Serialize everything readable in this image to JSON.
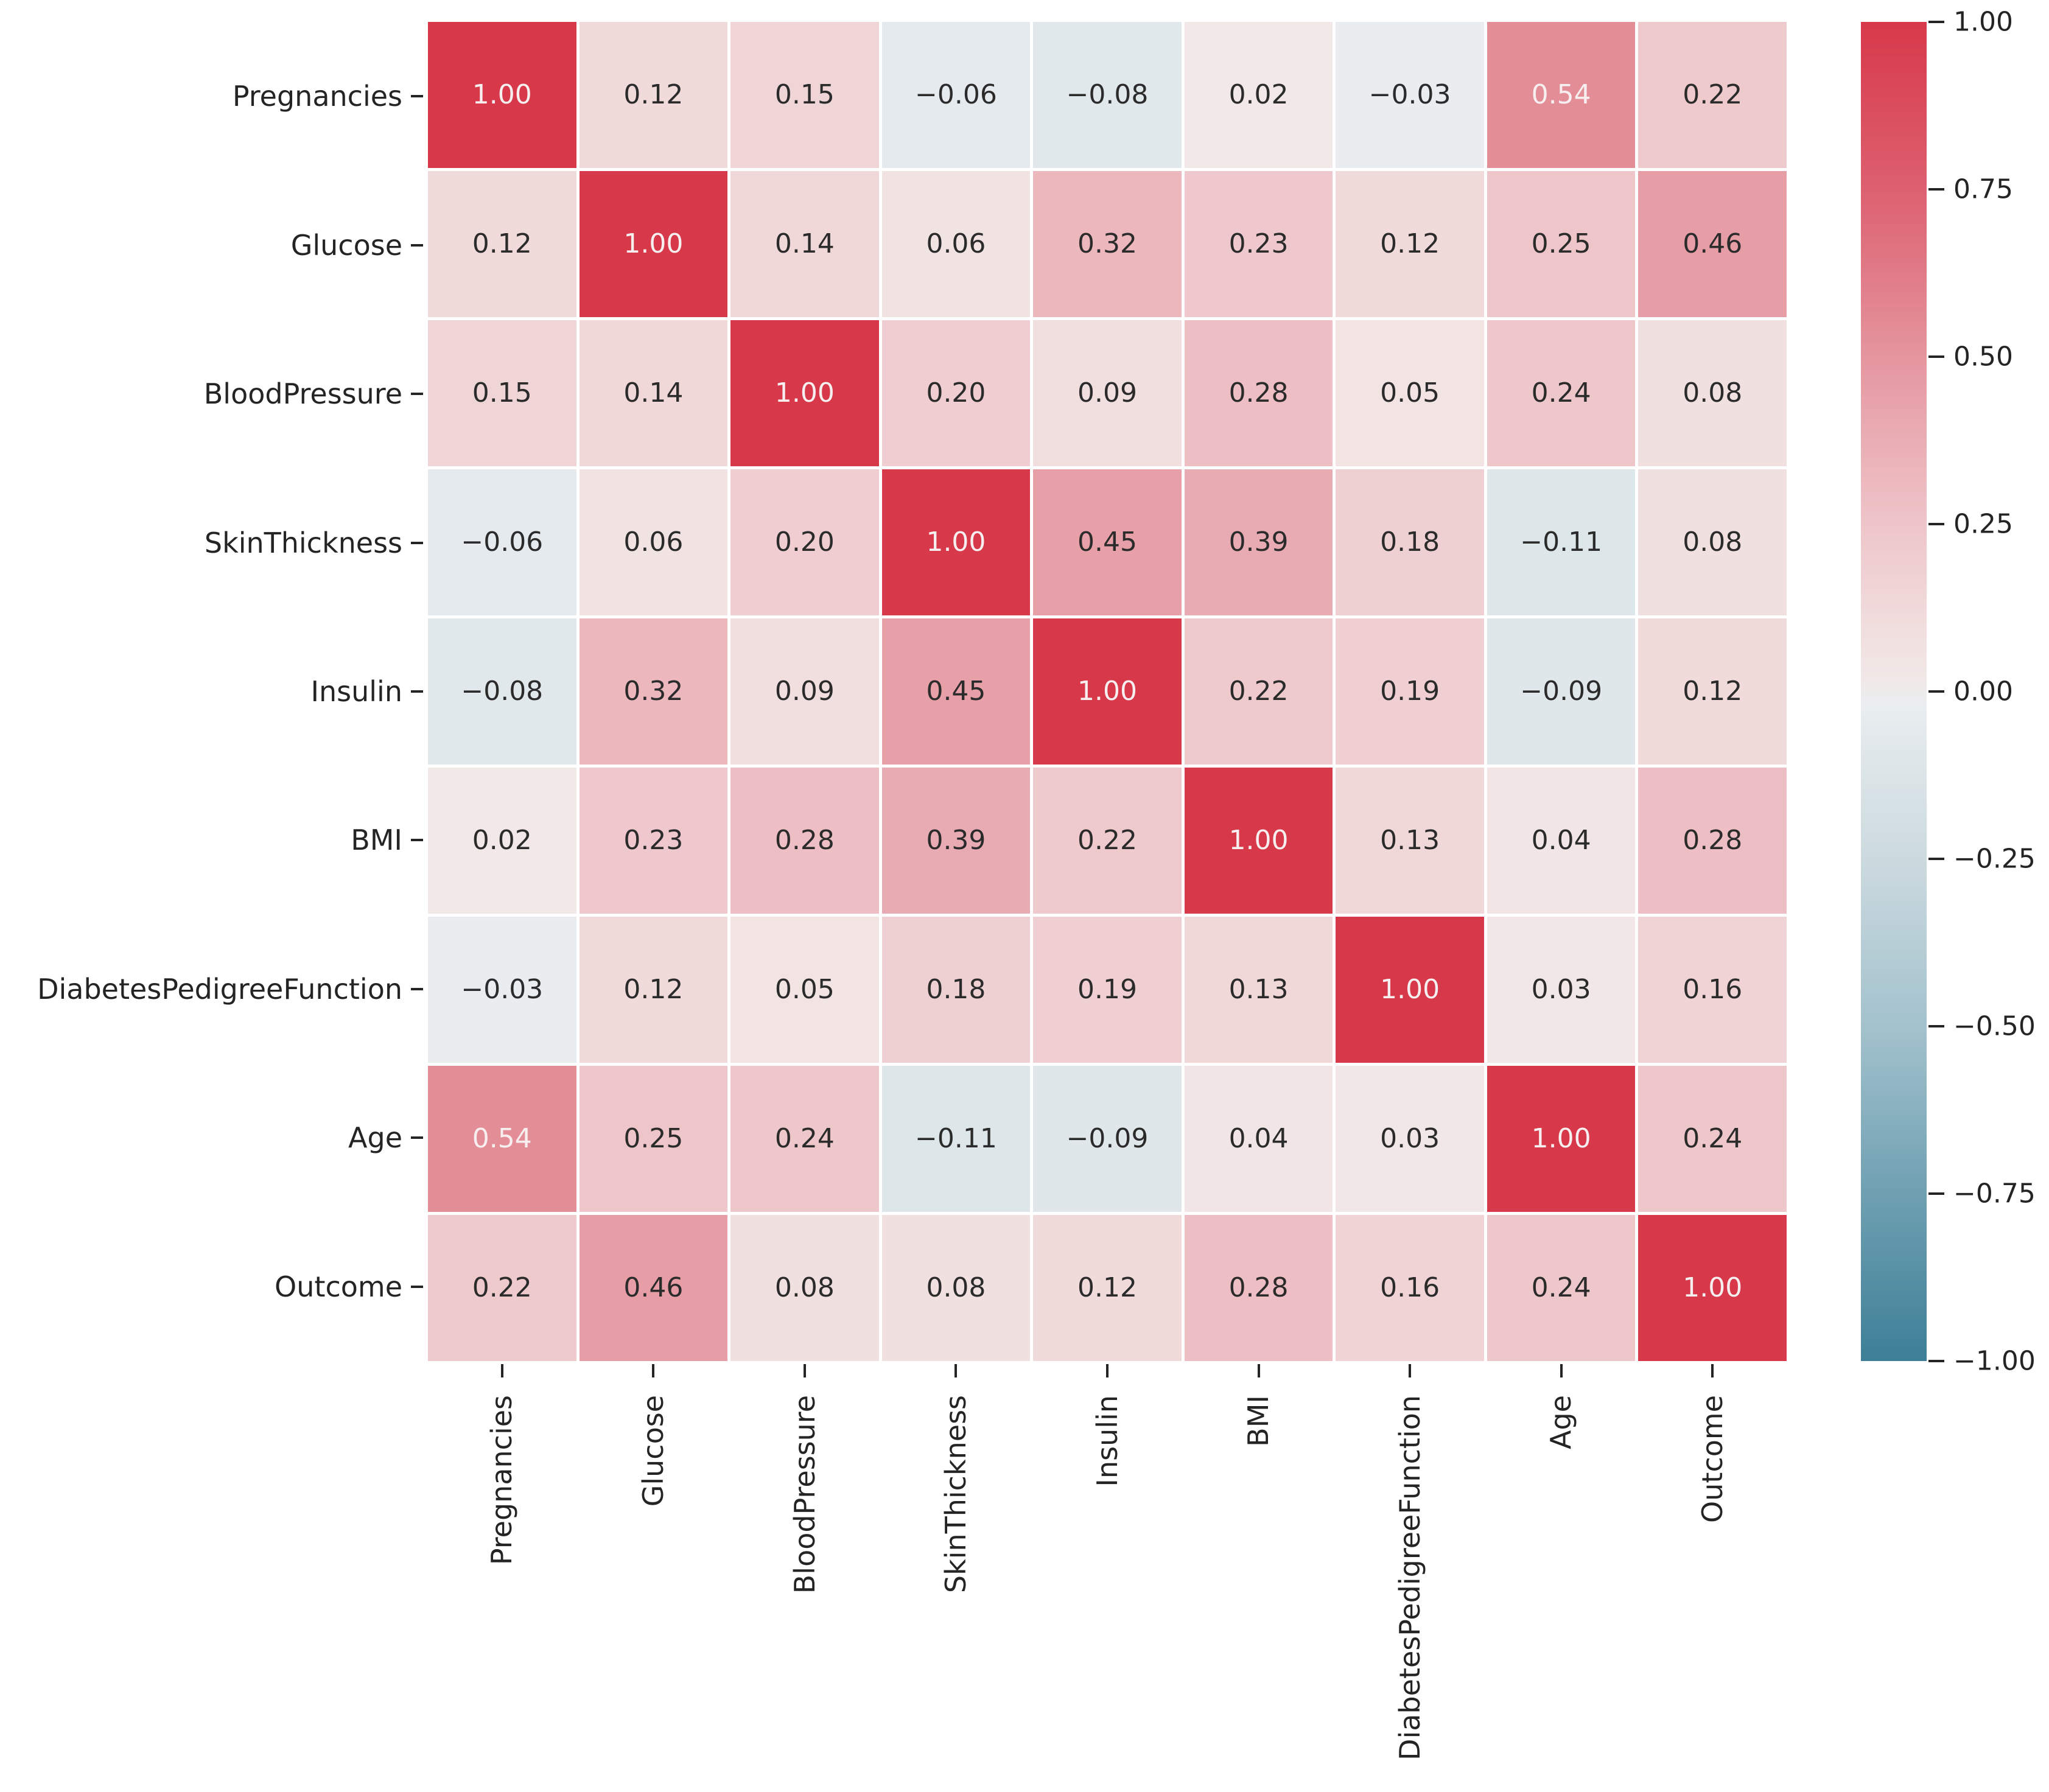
{
  "figure": {
    "background": "#ffffff",
    "kind": "seaborn-correlation-heatmap"
  },
  "chart_data": {
    "type": "heatmap",
    "title": "",
    "xlabel": "",
    "ylabel": "",
    "categories": [
      "Pregnancies",
      "Glucose",
      "BloodPressure",
      "SkinThickness",
      "Insulin",
      "BMI",
      "DiabetesPedigreeFunction",
      "Age",
      "Outcome"
    ],
    "matrix": [
      [
        1.0,
        0.12,
        0.15,
        -0.06,
        -0.08,
        0.02,
        -0.03,
        0.54,
        0.22
      ],
      [
        0.12,
        1.0,
        0.14,
        0.06,
        0.32,
        0.23,
        0.12,
        0.25,
        0.46
      ],
      [
        0.15,
        0.14,
        1.0,
        0.2,
        0.09,
        0.28,
        0.05,
        0.24,
        0.08
      ],
      [
        -0.06,
        0.06,
        0.2,
        1.0,
        0.45,
        0.39,
        0.18,
        -0.11,
        0.08
      ],
      [
        -0.08,
        0.32,
        0.09,
        0.45,
        1.0,
        0.22,
        0.19,
        -0.09,
        0.12
      ],
      [
        0.02,
        0.23,
        0.28,
        0.39,
        0.22,
        1.0,
        0.13,
        0.04,
        0.28
      ],
      [
        -0.03,
        0.12,
        0.05,
        0.18,
        0.19,
        0.13,
        1.0,
        0.03,
        0.16
      ],
      [
        0.54,
        0.25,
        0.24,
        -0.11,
        -0.09,
        0.04,
        0.03,
        1.0,
        0.24
      ],
      [
        0.22,
        0.46,
        0.08,
        0.08,
        0.12,
        0.28,
        0.16,
        0.24,
        1.0
      ]
    ],
    "annotation_decimals": 2,
    "minus_sign": "−",
    "value_range": [
      -1,
      1
    ],
    "grid_line_color": "#ffffff",
    "annotation_colors": {
      "dark": "#2b2b2b",
      "light": "#f7eef0",
      "light_threshold": 0.5
    },
    "colormap_stops": [
      {
        "v": -1.0,
        "c": "#3d7f97"
      },
      {
        "v": -0.75,
        "c": "#6fa0b2"
      },
      {
        "v": -0.5,
        "c": "#a3c2cd"
      },
      {
        "v": -0.25,
        "c": "#ccdadf"
      },
      {
        "v": -0.08,
        "c": "#e1e8eb"
      },
      {
        "v": -0.02,
        "c": "#eaeef0"
      },
      {
        "v": 0.02,
        "c": "#f1e8e7"
      },
      {
        "v": 0.1,
        "c": "#f1dddd"
      },
      {
        "v": 0.25,
        "c": "#eec5c9"
      },
      {
        "v": 0.4,
        "c": "#e9a9b1"
      },
      {
        "v": 0.54,
        "c": "#e38d97"
      },
      {
        "v": 0.75,
        "c": "#dd6070"
      },
      {
        "v": 1.0,
        "c": "#d7394a"
      }
    ],
    "colorbar": {
      "position": "right",
      "tick_values": [
        1.0,
        0.75,
        0.5,
        0.25,
        0.0,
        -0.25,
        -0.5,
        -0.75,
        -1.0
      ],
      "tick_labels": [
        "1.00",
        "0.75",
        "0.50",
        "0.25",
        "0.00",
        "−0.25",
        "−0.50",
        "−0.75",
        "−1.00"
      ]
    },
    "legend": null,
    "grid": false
  }
}
